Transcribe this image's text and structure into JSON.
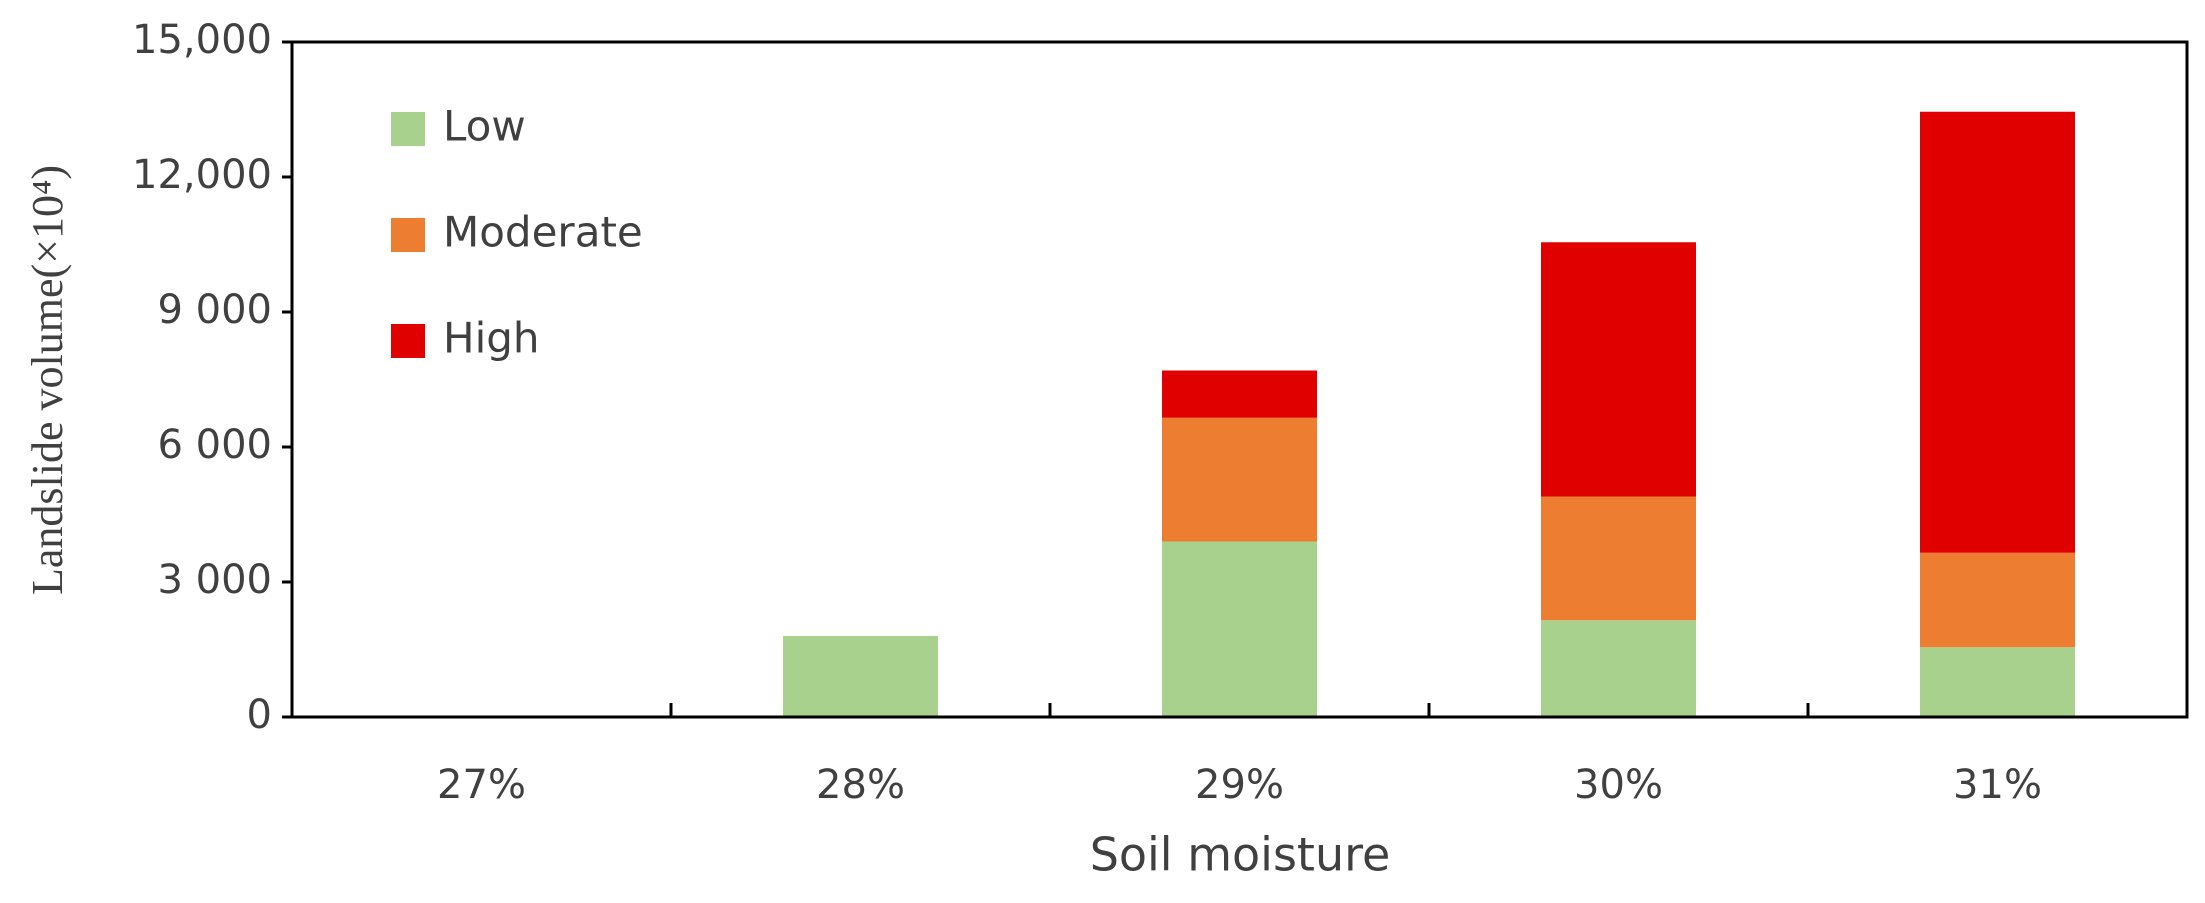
{
  "chart_data": {
    "type": "stacked_bar",
    "x_label": "Soil moisture",
    "y_label": "Landslide volume(×10⁴)",
    "categories": [
      "27%",
      "28%",
      "29%",
      "30%",
      "31%"
    ],
    "series": [
      {
        "name": "Low",
        "color": "#a9d18e",
        "values": [
          0,
          1800,
          3900,
          2150,
          1550
        ]
      },
      {
        "name": "Moderate",
        "color": "#ed7d31",
        "values": [
          0,
          0,
          2750,
          2750,
          2100
        ]
      },
      {
        "name": "High",
        "color": "#e00000",
        "values": [
          0,
          0,
          1050,
          5650,
          9800
        ]
      }
    ],
    "ylim": [
      0,
      15000
    ],
    "yticks": [
      0,
      {
        "value": 3000,
        "label": "3 000"
      },
      {
        "value": 6000,
        "label": "6 000"
      },
      {
        "value": 9000,
        "label": "9 000"
      },
      {
        "value": 12000,
        "label": "12,000"
      },
      {
        "value": 15000,
        "label": "15,000"
      }
    ],
    "legend": "upper-left"
  }
}
